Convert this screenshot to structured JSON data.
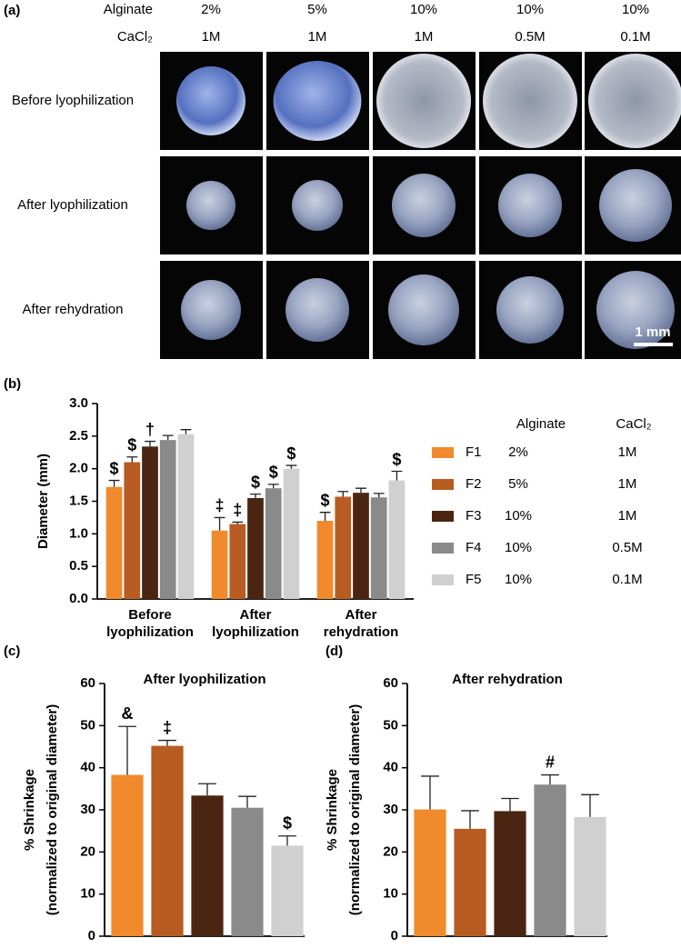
{
  "panel_a": {
    "label": "(a)",
    "header_labels": [
      "Alginate",
      "CaCl₂"
    ],
    "alginate": [
      "2%",
      "5%",
      "10%",
      "10%",
      "10%"
    ],
    "cacl2": [
      "1M",
      "1M",
      "1M",
      "0.5M",
      "0.1M"
    ],
    "row_labels": [
      "Before lyophilization",
      "After lyophilization",
      "After rehydration"
    ],
    "scale_bar": "1 mm"
  },
  "chart_data": [
    {
      "type": "grouped_bar",
      "label": "(b)",
      "y_label": "Diameter (mm)",
      "categories": [
        "Before lyophilization",
        "After lyophilization",
        "After rehydration"
      ],
      "ylim": [
        0,
        3
      ],
      "yticks": [
        {
          "value": 0,
          "label": "0.0"
        },
        {
          "value": 0.5,
          "label": "0.5"
        },
        {
          "value": 1,
          "label": "1.0"
        },
        {
          "value": 1.5,
          "label": "1.5"
        },
        {
          "value": 2,
          "label": "2.0"
        },
        {
          "value": 2.5,
          "label": "2.5"
        },
        {
          "value": 3,
          "label": "3.0"
        }
      ],
      "legend_headers": [
        "Alginate",
        "CaCl₂"
      ],
      "series": [
        {
          "name": "F1",
          "color": "#f08a2c",
          "alginate": "2%",
          "cacl2": "1M",
          "values": [
            1.72,
            1.05,
            1.2
          ],
          "errors": [
            0.1,
            0.2,
            0.13
          ],
          "annotations": [
            "$",
            "‡",
            "$"
          ]
        },
        {
          "name": "F2",
          "color": "#b85c22",
          "alginate": "5%",
          "cacl2": "1M",
          "values": [
            2.1,
            1.15,
            1.57
          ],
          "errors": [
            0.08,
            0.03,
            0.08
          ],
          "annotations": [
            "$",
            "‡",
            null
          ]
        },
        {
          "name": "F3",
          "color": "#4a2612",
          "alginate": "10%",
          "cacl2": "1M",
          "values": [
            2.34,
            1.55,
            1.63
          ],
          "errors": [
            0.08,
            0.06,
            0.07
          ],
          "annotations": [
            "†",
            "$",
            null
          ]
        },
        {
          "name": "F4",
          "color": "#8a8a8a",
          "alginate": "10%",
          "cacl2": "0.5M",
          "values": [
            2.44,
            1.7,
            1.56
          ],
          "errors": [
            0.07,
            0.06,
            0.06
          ],
          "annotations": [
            null,
            "$",
            null
          ]
        },
        {
          "name": "F5",
          "color": "#d0d0d0",
          "alginate": "10%",
          "cacl2": "0.1M",
          "values": [
            2.53,
            2.0,
            1.82
          ],
          "errors": [
            0.07,
            0.05,
            0.14
          ],
          "annotations": [
            null,
            "$",
            "$"
          ]
        }
      ]
    },
    {
      "type": "bar",
      "label": "(c)",
      "title": "After lyophilization",
      "y_label": [
        "% Shrinkage",
        "(normalized to original diameter)"
      ],
      "values": [
        38.3,
        45.2,
        33.4,
        30.5,
        21.5
      ],
      "errors": [
        11.5,
        1.3,
        2.8,
        2.7,
        2.3
      ],
      "colors": [
        "#f08a2c",
        "#b85c22",
        "#4a2612",
        "#8a8a8a",
        "#d0d0d0"
      ],
      "annotations": [
        "&",
        "‡",
        null,
        null,
        "$"
      ],
      "ylim": [
        0,
        60
      ],
      "yticks": [
        0,
        10,
        20,
        30,
        40,
        50,
        60
      ]
    },
    {
      "type": "bar",
      "label": "(d)",
      "title": "After rehydration",
      "y_label": [
        "% Shrinkage",
        "(normalized to original diameter)"
      ],
      "values": [
        30.1,
        25.5,
        29.7,
        36.0,
        28.3
      ],
      "errors": [
        7.9,
        4.3,
        3.0,
        2.3,
        5.3
      ],
      "colors": [
        "#f08a2c",
        "#b85c22",
        "#4a2612",
        "#8a8a8a",
        "#d0d0d0"
      ],
      "annotations": [
        null,
        null,
        null,
        "#",
        null
      ],
      "ylim": [
        0,
        60
      ],
      "yticks": [
        0,
        10,
        20,
        30,
        40,
        50,
        60
      ]
    }
  ]
}
